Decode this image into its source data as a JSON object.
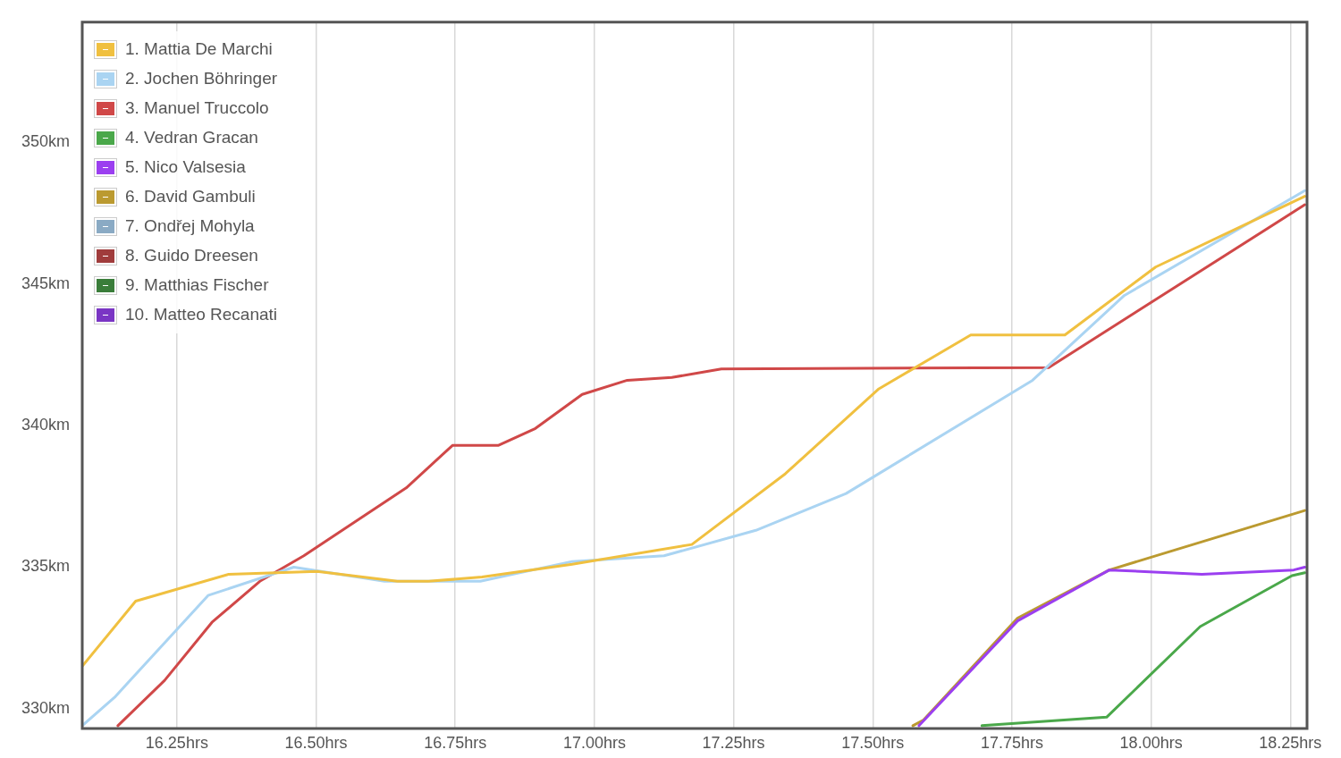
{
  "chart_data": {
    "type": "line",
    "xlim": [
      16.08,
      18.28
    ],
    "xticks": [
      {
        "value": 16.25,
        "label": "16.25hrs"
      },
      {
        "value": 16.5,
        "label": "16.50hrs"
      },
      {
        "value": 16.75,
        "label": "16.75hrs"
      },
      {
        "value": 17,
        "label": "17.00hrs"
      },
      {
        "value": 17.25,
        "label": "17.25hrs"
      },
      {
        "value": 17.5,
        "label": "17.50hrs"
      },
      {
        "value": 17.75,
        "label": "17.75hrs"
      },
      {
        "value": 18,
        "label": "18.00hrs"
      },
      {
        "value": 18.25,
        "label": "18.25hrs"
      }
    ],
    "ylim": [
      329.3,
      354.25
    ],
    "yticks": [
      {
        "value": 330,
        "label": "330km"
      },
      {
        "value": 335,
        "label": "335km"
      },
      {
        "value": 340,
        "label": "340km"
      },
      {
        "value": 345,
        "label": "345km"
      },
      {
        "value": 350,
        "label": "350km"
      }
    ],
    "grid": "x",
    "legend": "top left",
    "marker": "none",
    "line_style": "solid",
    "series": [
      {
        "name": "1. Mattia De Marchi",
        "color": "#f0c040",
        "x": [
          16.08,
          16.176,
          16.343,
          16.502,
          16.646,
          16.702,
          16.798,
          16.96,
          17.175,
          17.343,
          17.511,
          17.676,
          17.845,
          18.008,
          18.276
        ],
        "values": [
          331.5,
          333.8,
          334.75,
          334.85,
          334.5,
          334.5,
          334.65,
          335.1,
          335.8,
          338.3,
          341.3,
          343.2,
          343.2,
          345.6,
          348.1
        ]
      },
      {
        "name": "2. Jochen Böhringer",
        "color": "#aad4f2",
        "x": [
          16.08,
          16.138,
          16.306,
          16.46,
          16.623,
          16.795,
          16.96,
          17.125,
          17.29,
          17.452,
          17.787,
          17.952,
          18.276
        ],
        "values": [
          329.4,
          330.4,
          334.0,
          335.0,
          334.5,
          334.5,
          335.2,
          335.4,
          336.3,
          337.6,
          341.6,
          344.6,
          348.3
        ]
      },
      {
        "name": "3. Manuel Truccolo",
        "color": "#d04848",
        "x": [
          16.144,
          16.228,
          16.313,
          16.399,
          16.478,
          16.662,
          16.745,
          16.827,
          16.894,
          16.978,
          17.059,
          17.139,
          17.228,
          17.816,
          18.276
        ],
        "values": [
          329.4,
          331.0,
          333.05,
          334.5,
          335.4,
          337.8,
          339.3,
          339.3,
          339.9,
          341.1,
          341.6,
          341.7,
          342.0,
          342.05,
          347.8
        ]
      },
      {
        "name": "4. Vedran Gracan",
        "color": "#4aa84a",
        "x": [
          17.696,
          17.92,
          18.088,
          18.253,
          18.276
        ],
        "values": [
          329.4,
          329.7,
          332.9,
          334.7,
          334.8
        ]
      },
      {
        "name": "5. Nico Valsesia",
        "color": "#9b3ff0",
        "x": [
          17.583,
          17.76,
          17.925,
          18.091,
          18.256,
          18.276
        ],
        "values": [
          329.4,
          333.1,
          334.9,
          334.75,
          334.9,
          335.0
        ]
      },
      {
        "name": "6. David Gambuli",
        "color": "#bb9a30",
        "x": [
          17.572,
          17.591,
          17.76,
          17.925,
          18.276
        ],
        "values": [
          329.4,
          329.6,
          333.2,
          334.9,
          337.0
        ]
      },
      {
        "name": "7. Ondřej Mohyla",
        "color": "#8aaac4"
      },
      {
        "name": "8. Guido Dreesen",
        "color": "#a03c3c"
      },
      {
        "name": "9. Matthias Fischer",
        "color": "#3a7d3a"
      },
      {
        "name": "10. Matteo Recanati",
        "color": "#7a35c4"
      }
    ]
  }
}
